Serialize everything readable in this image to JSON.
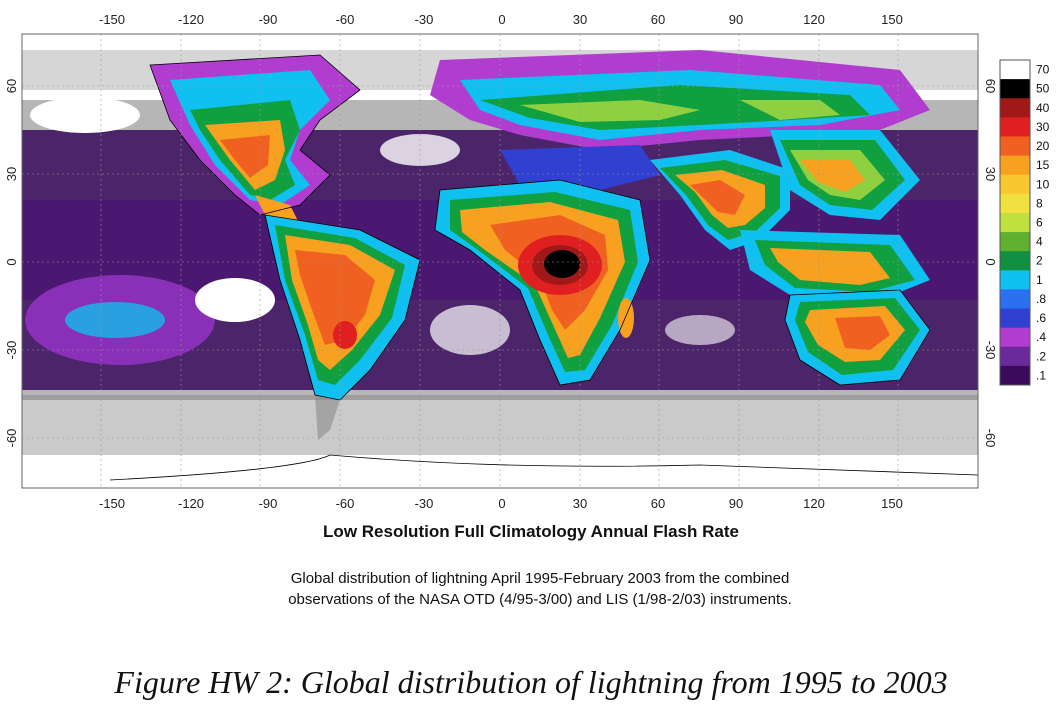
{
  "map": {
    "lon_ticks": [
      "-150",
      "-120",
      "-90",
      "-60",
      "-30",
      "0",
      "30",
      "60",
      "90",
      "120",
      "150"
    ],
    "lat_ticks": [
      "60",
      "30",
      "0",
      "-30",
      "-60"
    ],
    "colors": {
      "ocean_low": "#ffffff",
      "very_low": "#3a0a5c",
      "low": "#6a2a9c",
      "low_mid": "#b03cd0",
      "blue": "#2b50e0",
      "cyan": "#10c0f0",
      "green": "#10a040",
      "light_green": "#8fd040",
      "yellow": "#f0e040",
      "orange": "#f8a020",
      "red_orange": "#f06020",
      "red": "#e02020",
      "dark_red": "#a01818",
      "black": "#000000",
      "gray": "#808080"
    }
  },
  "colorbar": {
    "levels": [
      {
        "label": "70",
        "color": "#ffffff"
      },
      {
        "label": "50",
        "color": "#000000"
      },
      {
        "label": "40",
        "color": "#a01818"
      },
      {
        "label": "30",
        "color": "#e02020"
      },
      {
        "label": "20",
        "color": "#f06020"
      },
      {
        "label": "15",
        "color": "#f8a020"
      },
      {
        "label": "10",
        "color": "#f8c830"
      },
      {
        "label": "8",
        "color": "#f0e040"
      },
      {
        "label": "6",
        "color": "#c0e040"
      },
      {
        "label": "4",
        "color": "#60b030"
      },
      {
        "label": "2",
        "color": "#109040"
      },
      {
        "label": "1",
        "color": "#10c0f0"
      },
      {
        "label": ".8",
        "color": "#2b70f0"
      },
      {
        "label": ".6",
        "color": "#3040d0"
      },
      {
        "label": ".4",
        "color": "#b03cd0"
      },
      {
        "label": ".2",
        "color": "#6a2a9c"
      },
      {
        "label": ".1",
        "color": "#3a0a5c"
      }
    ]
  },
  "title": "Low Resolution Full Climatology Annual Flash Rate",
  "caption_line1": "Global distribution of lightning April 1995-February 2003 from the combined",
  "caption_line2": "observations of the NASA OTD (4/95-3/00) and LIS (1/98-2/03) instruments.",
  "figure_caption": "Figure HW 2: Global distribution of lightning from 1995 to 2003"
}
